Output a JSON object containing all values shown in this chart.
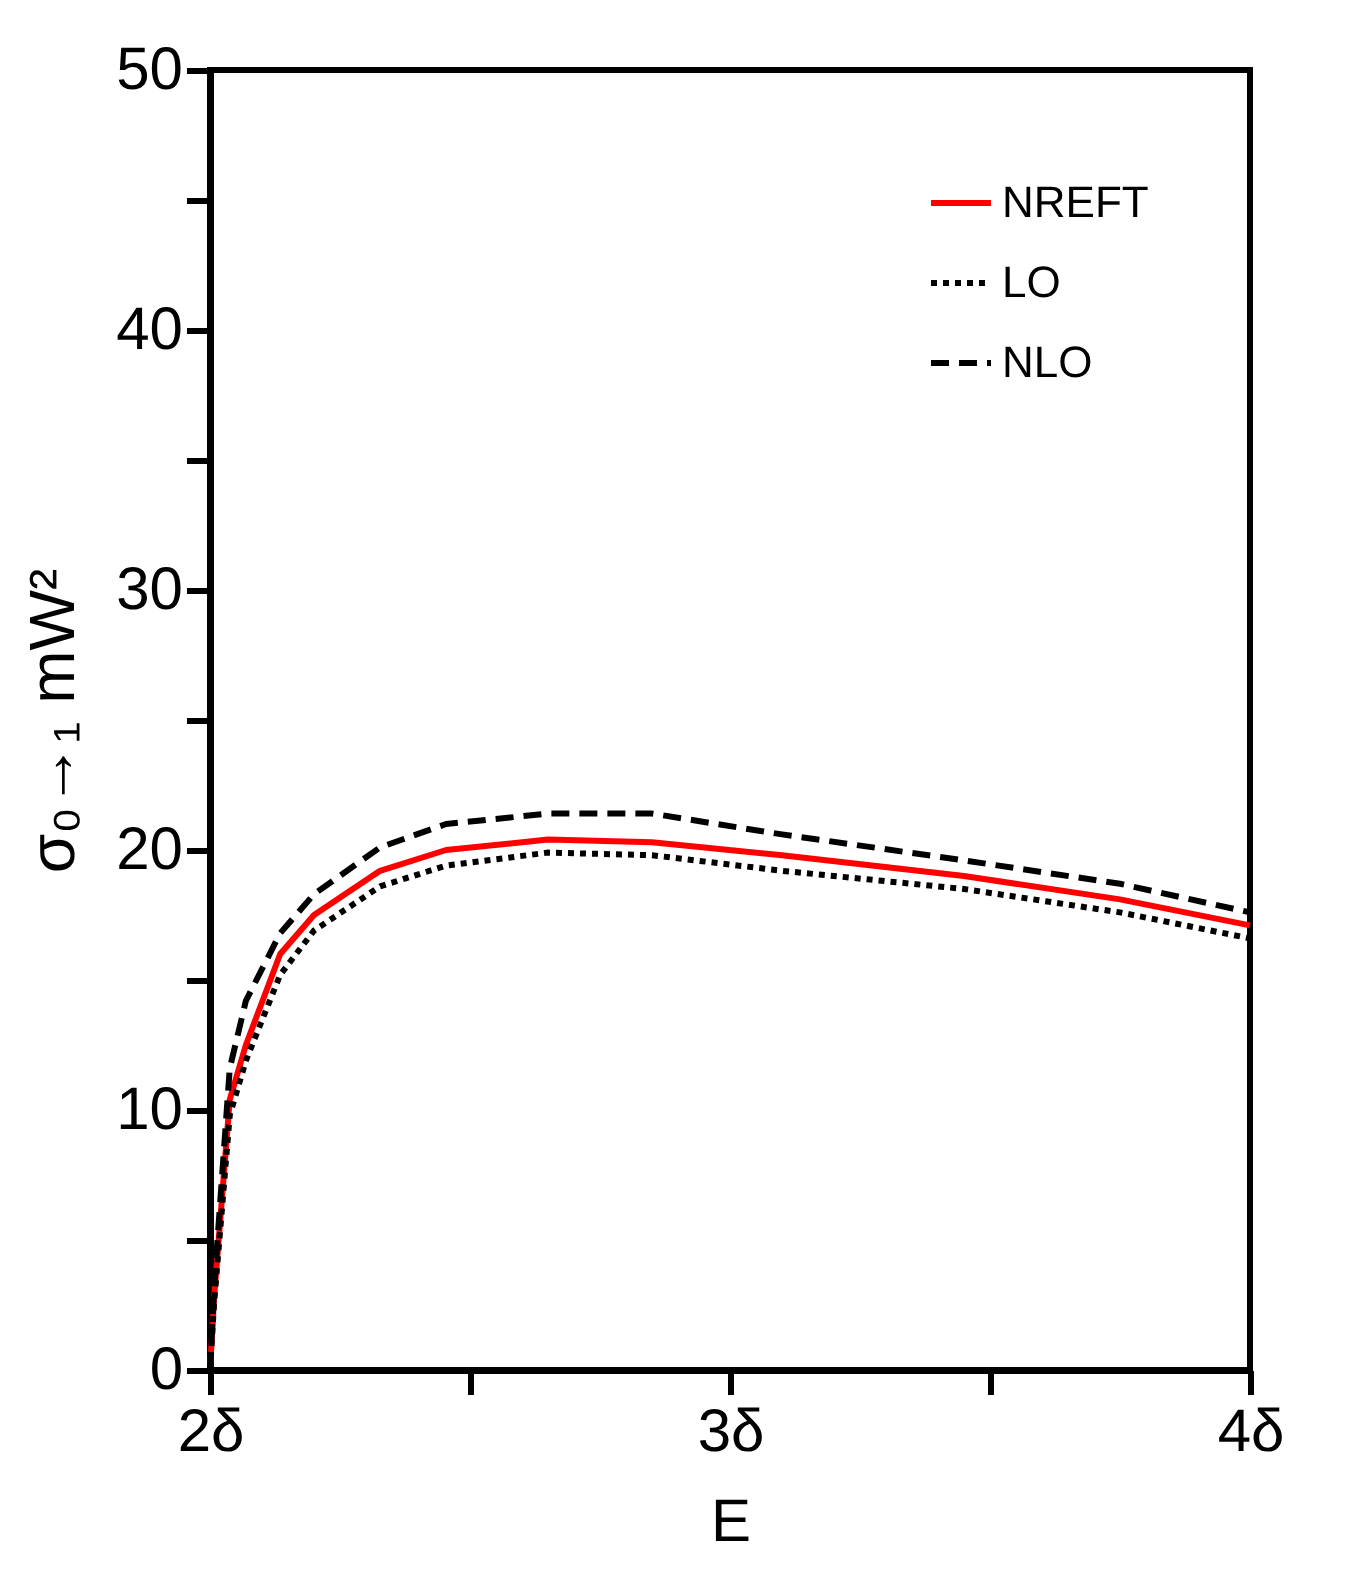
{
  "chart_data": {
    "type": "line",
    "xlabel": "E",
    "ylabel": "σ₀→₁ mW²",
    "xlim": [
      2,
      4
    ],
    "ylim": [
      0,
      50
    ],
    "xticks": [
      {
        "value": 2,
        "label": "2δ"
      },
      {
        "value": 2.5,
        "label": null
      },
      {
        "value": 3,
        "label": "3δ"
      },
      {
        "value": 3.5,
        "label": null
      },
      {
        "value": 4,
        "label": "4δ"
      }
    ],
    "yticks": [
      0,
      {
        "value": 5,
        "label": null
      },
      10,
      {
        "value": 15,
        "label": null
      },
      20,
      {
        "value": 25,
        "label": null
      },
      30,
      {
        "value": 35,
        "label": null
      },
      40,
      {
        "value": 45,
        "label": null
      },
      50
    ],
    "grid": false,
    "legend": "top right",
    "series": [
      {
        "name": "NREFT",
        "color": "#ff0000",
        "line_style": "solid",
        "x": [
          2.0,
          2.008,
          2.038,
          2.069,
          2.135,
          2.2,
          2.327,
          2.454,
          2.65,
          2.85,
          3.1,
          3.45,
          3.75,
          4.0
        ],
        "values": [
          0,
          2.8,
          10.4,
          12.5,
          16.0,
          17.5,
          19.2,
          20.0,
          20.4,
          20.3,
          19.8,
          19.0,
          18.1,
          17.1
        ]
      },
      {
        "name": "LO",
        "color": "#000000",
        "line_style": "dotted",
        "x": [
          2.0,
          2.008,
          2.038,
          2.069,
          2.135,
          2.2,
          2.327,
          2.454,
          2.65,
          2.85,
          3.1,
          3.45,
          3.75,
          4.0
        ],
        "values": [
          0,
          2.6,
          9.8,
          11.9,
          15.2,
          16.9,
          18.6,
          19.4,
          19.9,
          19.8,
          19.2,
          18.5,
          17.6,
          16.6
        ]
      },
      {
        "name": "NLO",
        "color": "#000000",
        "line_style": "dashed",
        "x": [
          2.0,
          2.008,
          2.038,
          2.069,
          2.135,
          2.2,
          2.327,
          2.454,
          2.65,
          2.85,
          3.1,
          3.45,
          3.75,
          4.0
        ],
        "values": [
          0,
          3.2,
          11.6,
          14.2,
          16.8,
          18.3,
          20.1,
          21.0,
          21.4,
          21.4,
          20.6,
          19.6,
          18.7,
          17.6
        ]
      }
    ]
  }
}
